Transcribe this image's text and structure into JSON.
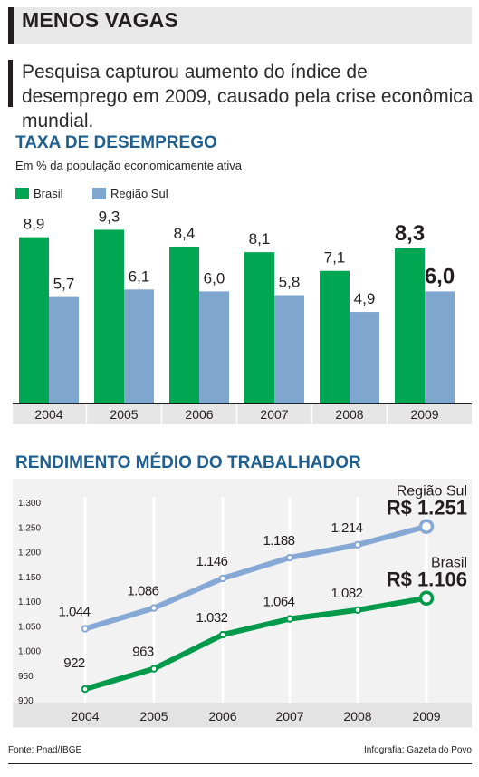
{
  "header": {
    "title": "MENOS VAGAS",
    "lede": "Pesquisa capturou aumento do índice de desemprego em 2009, causado pela crise econômica mundial."
  },
  "colors": {
    "brasil": "#00a651",
    "regiao_sul": "#7fa6cf",
    "section_title": "#1f5f8f",
    "line_brasil": "#009a4a",
    "line_regiao_sul": "#85a8d4"
  },
  "footer": {
    "source": "Fonte: Pnad/IBGE",
    "credit": "Infografia: Gazeta do Povo"
  },
  "chart_data": [
    {
      "type": "bar",
      "title": "TAXA DE DESEMPREGO",
      "subtitle": "Em % da população economicamente ativa",
      "categories": [
        "2004",
        "2005",
        "2006",
        "2007",
        "2008",
        "2009"
      ],
      "series": [
        {
          "name": "Brasil",
          "values": [
            8.9,
            9.3,
            8.4,
            8.1,
            7.1,
            8.3
          ],
          "labels": [
            "8,9",
            "9,3",
            "8,4",
            "8,1",
            "7,1",
            "8,3"
          ]
        },
        {
          "name": "Região Sul",
          "values": [
            5.7,
            6.1,
            6.0,
            5.8,
            4.9,
            6.0
          ],
          "labels": [
            "5,7",
            "6,1",
            "6,0",
            "5,8",
            "4,9",
            "6,0"
          ]
        }
      ],
      "ylim": [
        0,
        11.0
      ],
      "legend": "top-left",
      "highlight_category": "2009"
    },
    {
      "type": "line",
      "title": "RENDIMENTO MÉDIO DO TRABALHADOR",
      "x": [
        "2004",
        "2005",
        "2006",
        "2007",
        "2008",
        "2009"
      ],
      "ylim": [
        900,
        1300
      ],
      "yticks": [
        900,
        950,
        1000,
        1050,
        1100,
        1150,
        1200,
        1250,
        1300
      ],
      "ytick_labels": [
        "900",
        "950",
        "1.000",
        "1.050",
        "1.100",
        "1.150",
        "1.200",
        "1.250",
        "1.300"
      ],
      "grid": "vertical",
      "series": [
        {
          "name": "Região Sul",
          "values": [
            1044,
            1086,
            1146,
            1188,
            1214,
            1251
          ],
          "labels": [
            "1.044",
            "1.086",
            "1.146",
            "1.188",
            "1.214",
            ""
          ],
          "final_label": "R$ 1.251"
        },
        {
          "name": "Brasil",
          "values": [
            922,
            963,
            1032,
            1064,
            1082,
            1106
          ],
          "labels": [
            "922",
            "963",
            "1.032",
            "1.064",
            "1.082",
            ""
          ],
          "final_label": "R$ 1.106"
        }
      ]
    }
  ]
}
